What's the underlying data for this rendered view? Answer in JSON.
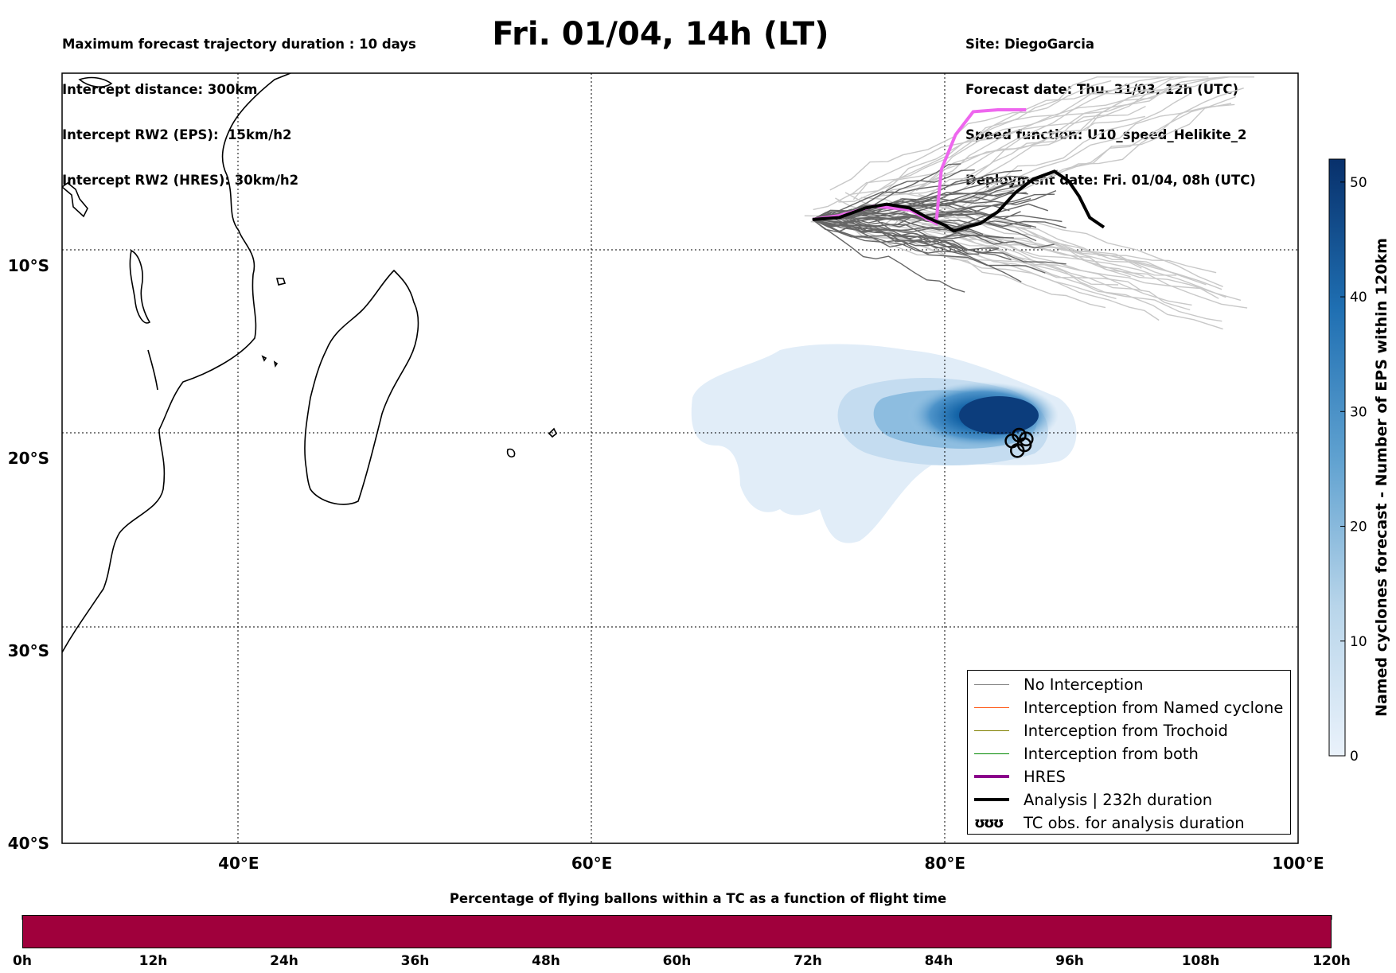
{
  "header": {
    "left_lines": [
      "Maximum forecast trajectory duration : 10 days",
      "Intercept distance: 300km",
      "Intercept RW2 (EPS):  15km/h2",
      "Intercept RW2 (HRES): 30km/h2"
    ],
    "title": "Fri. 01/04, 14h (LT)",
    "right_lines": [
      "Site: DiegoGarcia",
      "Forecast date: Thu. 31/03, 12h (UTC)",
      "Speed function: U10_speed_Helikite_2",
      "Deployment date: Fri. 01/04, 08h (UTC)"
    ]
  },
  "map": {
    "lon_range": [
      30,
      100
    ],
    "lat_range": [
      -40,
      0
    ],
    "lon_ticks": [
      {
        "value": 40,
        "label": "40°E"
      },
      {
        "value": 60,
        "label": "60°E"
      },
      {
        "value": 80,
        "label": "80°E"
      },
      {
        "value": 100,
        "label": "100°E"
      }
    ],
    "lat_ticks": [
      {
        "value": -10,
        "label": "10°S"
      },
      {
        "value": -20,
        "label": "20°S"
      },
      {
        "value": -30,
        "label": "30°S"
      },
      {
        "value": -40,
        "label": "40°S"
      }
    ],
    "gridlines": true,
    "colors": {
      "hres": "#ee66ee",
      "analysis": "#000000",
      "no_interception": "#666666",
      "ensemble_light": "#c8c8c8"
    }
  },
  "tracks": {
    "hres": [
      [
        72.5,
        -7.6
      ],
      [
        74,
        -7.4
      ],
      [
        76,
        -6.9
      ],
      [
        78,
        -7.1
      ],
      [
        79.5,
        -7.8
      ],
      [
        79.8,
        -5
      ],
      [
        80.6,
        -3.2
      ],
      [
        81.6,
        -2
      ],
      [
        83,
        -1.9
      ],
      [
        84.6,
        -1.9
      ]
    ],
    "analysis": [
      [
        72.5,
        -7.6
      ],
      [
        74,
        -7.5
      ],
      [
        75.5,
        -7
      ],
      [
        76.7,
        -6.8
      ],
      [
        78,
        -7
      ],
      [
        79,
        -7.5
      ],
      [
        80,
        -7.9
      ],
      [
        80.5,
        -8.2
      ],
      [
        81.2,
        -8
      ],
      [
        82,
        -7.8
      ],
      [
        83,
        -7.2
      ],
      [
        84,
        -6.2
      ],
      [
        85,
        -5.5
      ],
      [
        86.2,
        -5.1
      ],
      [
        87,
        -5.6
      ],
      [
        87.6,
        -6.4
      ],
      [
        88.2,
        -7.5
      ],
      [
        89,
        -8
      ]
    ]
  },
  "tc_density": {
    "center": [
      83.8,
      -19.2
    ],
    "obs_points": [
      [
        83.8,
        -19.1
      ],
      [
        84.2,
        -18.8
      ],
      [
        84.5,
        -19.3
      ],
      [
        84.1,
        -19.6
      ],
      [
        84.6,
        -19.0
      ]
    ]
  },
  "legend": {
    "items": [
      {
        "label": "No Interception",
        "color": "#888888",
        "width": 1.5
      },
      {
        "label": "Interception from Named cyclone",
        "color": "#ff5511",
        "width": 1.5
      },
      {
        "label": "Interception from Trochoid",
        "color": "#808000",
        "width": 1.5
      },
      {
        "label": "Interception from both",
        "color": "#008800",
        "width": 1.5
      },
      {
        "label": "HRES",
        "color": "#8b008b",
        "width": 4
      },
      {
        "label": "Analysis | 232h duration",
        "color": "#000000",
        "width": 4
      },
      {
        "label": "TC obs. for analysis duration",
        "color": "#000000",
        "width": 0,
        "marker": "circles"
      }
    ]
  },
  "colorbar": {
    "title": "Named cyclones forecast - Number of EPS within 120km",
    "range": [
      0,
      52
    ],
    "ticks": [
      0,
      10,
      20,
      30,
      40,
      50
    ],
    "color_low": "#dbe9f6",
    "color_high": "#08306b"
  },
  "bottom_bar": {
    "title": "Percentage of flying ballons within a TC as a function of flight time",
    "labels": [
      "0h",
      "12h",
      "24h",
      "36h",
      "48h",
      "60h",
      "72h",
      "84h",
      "96h",
      "108h",
      "120h"
    ],
    "fill_color": "#a0003c"
  }
}
